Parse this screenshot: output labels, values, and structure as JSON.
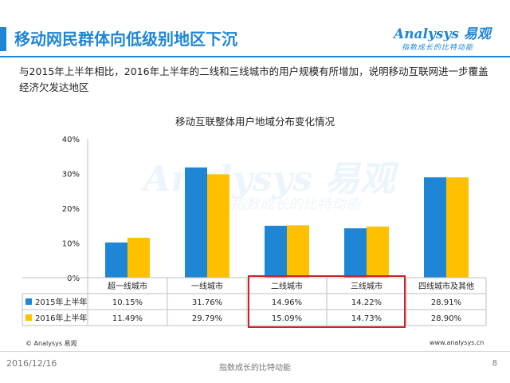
{
  "header": {
    "title": "移动网民群体向低级别地区下沉",
    "logo_text": "Analysys 易观",
    "logo_slogan": "指数成长的比特动能"
  },
  "summary": "与2015年上半年相比，2016年上半年的二线和三线城市的用户规模有所增加，说明移动互联网进一步覆盖经济欠发达地区",
  "watermark": {
    "text": "Analysys 易观",
    "slogan": "指数成长的比特动能"
  },
  "chart_data": {
    "type": "bar",
    "title": "移动互联整体用户地域分布变化情况",
    "categories": [
      "超一线城市",
      "一线城市",
      "二线城市",
      "三线城市",
      "四线城市及其他"
    ],
    "series": [
      {
        "name": "2015年上半年",
        "color": "#1f86d6",
        "values": [
          10.15,
          31.76,
          14.96,
          14.22,
          28.91
        ],
        "labels": [
          "10.15%",
          "31.76%",
          "14.96%",
          "14.22%",
          "28.91%"
        ]
      },
      {
        "name": "2016年上半年",
        "color": "#ffc000",
        "values": [
          11.49,
          29.79,
          15.09,
          14.73,
          28.9
        ],
        "labels": [
          "11.49%",
          "29.79%",
          "15.09%",
          "14.73%",
          "28.90%"
        ]
      }
    ],
    "ylim": [
      0,
      40
    ],
    "yticks": [
      "0%",
      "10%",
      "20%",
      "30%",
      "40%"
    ],
    "grid": false,
    "legend": "data-table",
    "highlight": {
      "categories": [
        "二线城市",
        "三线城市"
      ],
      "color": "#d0202a"
    }
  },
  "footer": {
    "source": "© Analysys 易观",
    "website": "www.analysys.cn",
    "date": "2016/12/16",
    "slogan": "指数成长的比特动能",
    "page": "8"
  }
}
